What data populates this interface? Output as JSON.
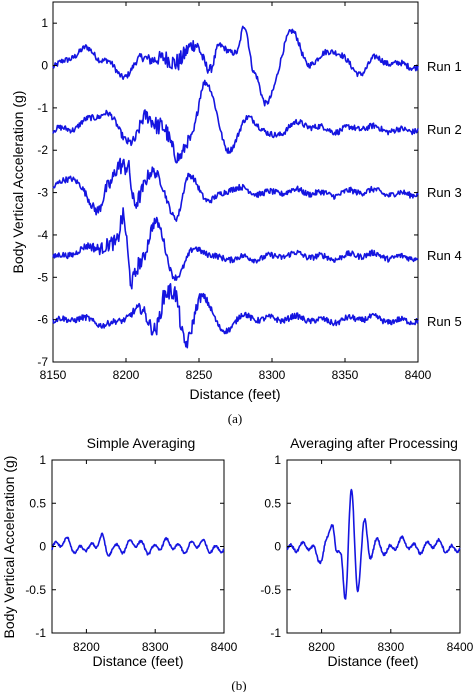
{
  "colors": {
    "series": "#1515e0",
    "axis": "#000000"
  },
  "chart_data": [
    {
      "type": "line",
      "caption": "(a)",
      "title": "",
      "xlabel": "Distance (feet)",
      "ylabel": "Body Vertical Acceleration (g)",
      "xlim": [
        8150,
        8400
      ],
      "ylim": [
        -7,
        1.5
      ],
      "xticks": [
        8150,
        8200,
        8250,
        8300,
        8350,
        8400
      ],
      "yticks": [
        -7,
        -6,
        -5,
        -4,
        -3,
        -2,
        -1,
        0,
        1
      ],
      "grid": false,
      "legend": "none",
      "series": [
        {
          "name": "Run 1",
          "offset": 0,
          "features": [
            [
              8172,
              0.35
            ],
            [
              8185,
              0.15
            ],
            [
              8198,
              -0.2
            ],
            [
              8212,
              0.15
            ],
            [
              8232,
              0.1
            ],
            [
              8248,
              0.5
            ],
            [
              8258,
              -0.1
            ],
            [
              8264,
              0.4
            ],
            [
              8276,
              0.3
            ],
            [
              8281,
              0.9
            ],
            [
              8288,
              -0.1
            ],
            [
              8296,
              -0.9
            ],
            [
              8313,
              0.75
            ],
            [
              8325,
              0.05
            ],
            [
              8342,
              0.4
            ],
            [
              8360,
              -0.2
            ],
            [
              8372,
              0.15
            ]
          ]
        },
        {
          "name": "Run 2",
          "offset": -1.5,
          "features": [
            [
              8185,
              0.4
            ],
            [
              8205,
              -0.3
            ],
            [
              8214,
              0.3
            ],
            [
              8224,
              0.0
            ],
            [
              8236,
              -0.6
            ],
            [
              8244,
              -0.25
            ],
            [
              8254,
              1.15
            ],
            [
              8270,
              -0.5
            ],
            [
              8285,
              0.3
            ],
            [
              8300,
              -0.15
            ],
            [
              8320,
              0.1
            ]
          ]
        },
        {
          "name": "Run 3",
          "offset": -3,
          "features": [
            [
              8162,
              0.35
            ],
            [
              8180,
              -0.4
            ],
            [
              8188,
              0.15
            ],
            [
              8196,
              0.7
            ],
            [
              8201,
              0.7
            ],
            [
              8206,
              -0.3
            ],
            [
              8218,
              0.5
            ],
            [
              8234,
              -0.55
            ],
            [
              8243,
              0.4
            ],
            [
              8258,
              -0.2
            ],
            [
              8275,
              0.1
            ]
          ]
        },
        {
          "name": "Run 4",
          "offset": -4.5,
          "features": [
            [
              8178,
              0.2
            ],
            [
              8193,
              0.3
            ],
            [
              8198,
              1.0
            ],
            [
              8204,
              -0.6
            ],
            [
              8210,
              -0.2
            ],
            [
              8220,
              0.8
            ],
            [
              8233,
              -0.45
            ],
            [
              8248,
              0.2
            ],
            [
              8265,
              -0.1
            ]
          ]
        },
        {
          "name": "Run 5",
          "offset": -6,
          "features": [
            [
              8185,
              -0.1
            ],
            [
              8210,
              0.2
            ],
            [
              8220,
              -0.25
            ],
            [
              8228,
              0.6
            ],
            [
              8233,
              0.7
            ],
            [
              8241,
              -0.55
            ],
            [
              8252,
              0.6
            ],
            [
              8266,
              -0.3
            ],
            [
              8282,
              0.1
            ]
          ]
        }
      ]
    },
    {
      "type": "line",
      "caption": "(b)",
      "title": "Simple Averaging",
      "xlabel": "Distance (feet)",
      "ylabel": "Body Vertical Acceleration (g)",
      "xlim": [
        8150,
        8400
      ],
      "ylim": [
        -1,
        1
      ],
      "xticks": [
        8200,
        8300,
        8400
      ],
      "yticks": [
        -1,
        -0.5,
        0,
        0.5,
        1
      ],
      "grid": false,
      "legend": "none",
      "series": [
        {
          "features": [
            [
              8165,
              0.03
            ],
            [
              8185,
              -0.03
            ],
            [
              8200,
              0.03
            ],
            [
              8212,
              -0.04
            ],
            [
              8222,
              0.1
            ],
            [
              8230,
              -0.1
            ],
            [
              8238,
              0.03
            ],
            [
              8255,
              -0.02
            ],
            [
              8275,
              0.02
            ],
            [
              8300,
              -0.01
            ],
            [
              8330,
              0.01
            ]
          ]
        }
      ]
    },
    {
      "type": "line",
      "caption": "",
      "title": "Averaging after Processing",
      "xlabel": "Distance (feet)",
      "ylabel": "",
      "xlim": [
        8150,
        8400
      ],
      "ylim": [
        -1,
        1
      ],
      "xticks": [
        8200,
        8300,
        8400
      ],
      "yticks": [
        -1,
        -0.5,
        0,
        0.5,
        1
      ],
      "grid": false,
      "legend": "none",
      "series": [
        {
          "features": [
            [
              8170,
              -0.05
            ],
            [
              8186,
              0.02
            ],
            [
              8196,
              -0.12
            ],
            [
              8208,
              0.05
            ],
            [
              8216,
              0.25
            ],
            [
              8222,
              -0.1
            ],
            [
              8228,
              -0.15
            ],
            [
              8234,
              -0.55
            ],
            [
              8243,
              0.66
            ],
            [
              8252,
              -0.45
            ],
            [
              8262,
              0.23
            ],
            [
              8270,
              -0.12
            ],
            [
              8280,
              0.05
            ],
            [
              8295,
              -0.02
            ],
            [
              8320,
              0.02
            ]
          ]
        }
      ]
    }
  ]
}
